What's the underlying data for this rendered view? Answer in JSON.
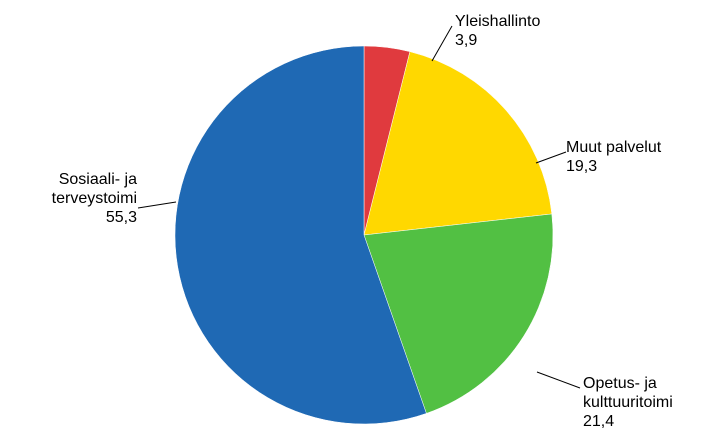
{
  "chart_data": {
    "type": "pie",
    "title": "",
    "start_angle_deg": 0,
    "direction": "clockwise",
    "slices": [
      {
        "name_lines": [
          "Yleishallinto"
        ],
        "value_label": "3,9",
        "value": 3.9,
        "color": "#e03a3e"
      },
      {
        "name_lines": [
          "Muut palvelut"
        ],
        "value_label": "19,3",
        "value": 19.3,
        "color": "#ffd800"
      },
      {
        "name_lines": [
          "Opetus- ja",
          "kulttuuritoimi"
        ],
        "value_label": "21,4",
        "value": 21.4,
        "color": "#52c043"
      },
      {
        "name_lines": [
          "Sosiaali- ja",
          "terveystoimi"
        ],
        "value_label": "55,3",
        "value": 55.3,
        "color": "#1f69b4"
      }
    ]
  }
}
